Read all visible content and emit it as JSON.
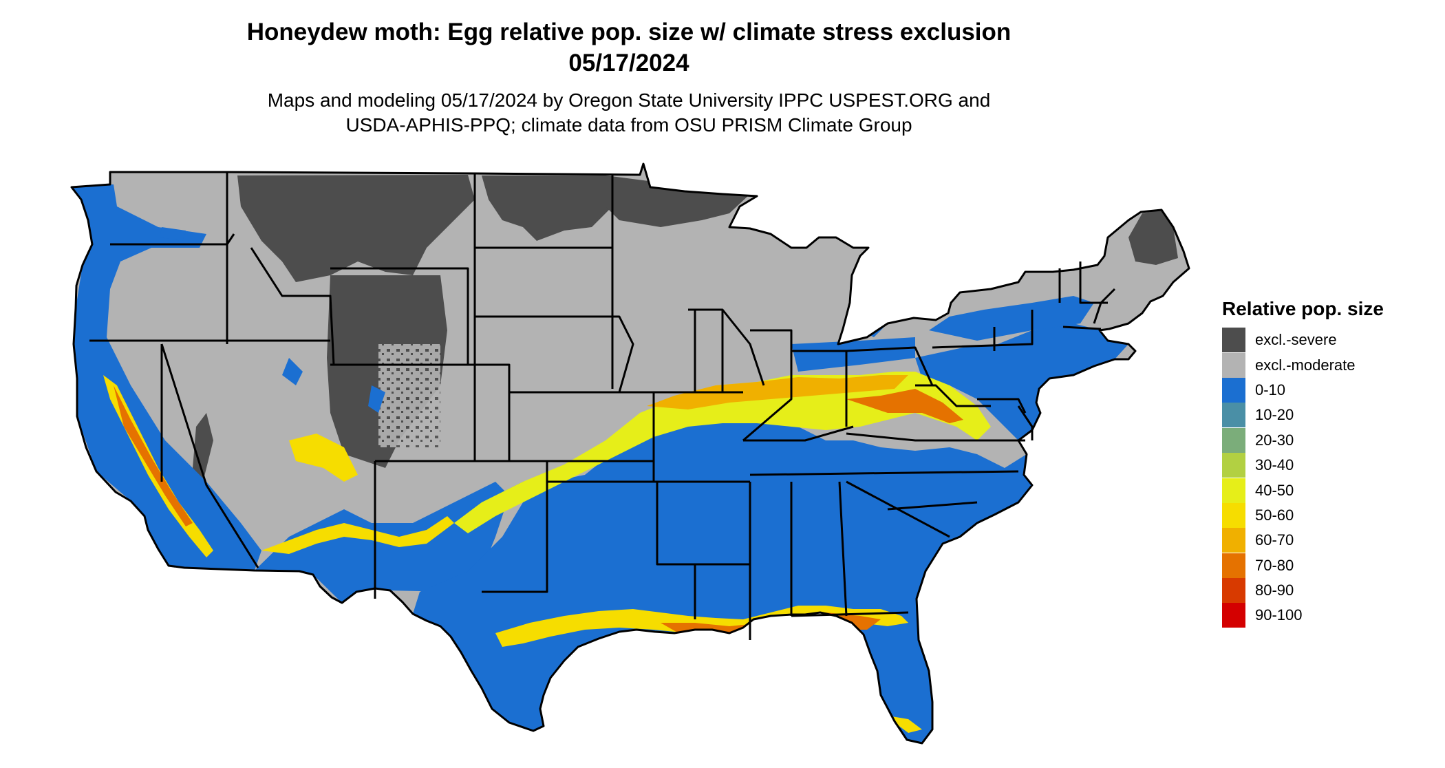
{
  "title": {
    "line1": "Honeydew moth: Egg relative pop. size w/ climate stress exclusion",
    "line2": "05/17/2024"
  },
  "subtitle": {
    "line1": "Maps and modeling 05/17/2024 by Oregon State University IPPC USPEST.ORG and",
    "line2": "USDA-APHIS-PPQ; climate data from OSU PRISM Climate Group"
  },
  "map": {
    "region": "contiguous United States"
  },
  "legend": {
    "title": "Relative pop. size",
    "items": [
      {
        "label": "excl.-severe",
        "color": "#4d4d4d"
      },
      {
        "label": "excl.-moderate",
        "color": "#b3b3b3"
      },
      {
        "label": "0-10",
        "color": "#1b6fd1"
      },
      {
        "label": "10-20",
        "color": "#4a8fa6"
      },
      {
        "label": "20-30",
        "color": "#7bad7a"
      },
      {
        "label": "30-40",
        "color": "#b2d042"
      },
      {
        "label": "40-50",
        "color": "#e6ee19"
      },
      {
        "label": "50-60",
        "color": "#f6dd00"
      },
      {
        "label": "60-70",
        "color": "#f0b000"
      },
      {
        "label": "70-80",
        "color": "#e57200"
      },
      {
        "label": "80-90",
        "color": "#d83a00"
      },
      {
        "label": "90-100",
        "color": "#d40000"
      }
    ]
  }
}
